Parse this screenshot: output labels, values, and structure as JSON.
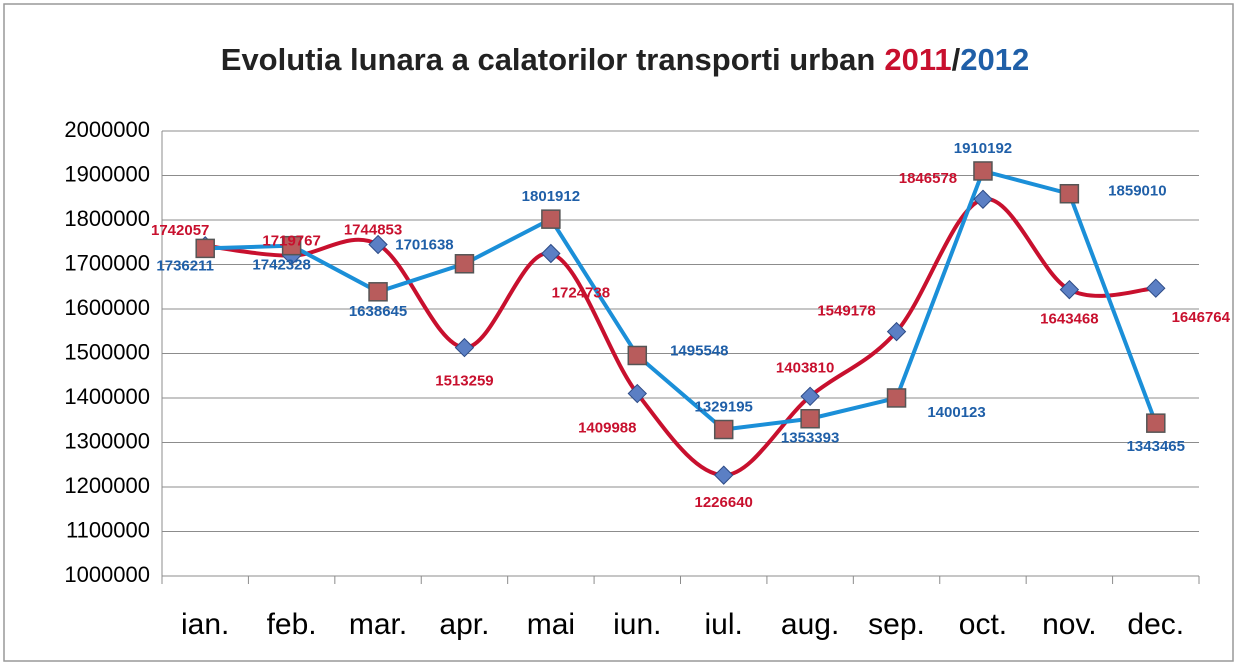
{
  "chart_data": {
    "type": "line",
    "title": "Evolutia lunara a calatorilor transporti urban",
    "title_separator": "/",
    "categories": [
      "ian.",
      "feb.",
      "mar.",
      "apr.",
      "mai",
      "iun.",
      "iul.",
      "aug.",
      "sep.",
      "oct.",
      "nov.",
      "dec."
    ],
    "series": [
      {
        "name": "2011",
        "color": "#c8102e",
        "label_color": "#c8102e",
        "marker": "diamond",
        "marker_color": "#5b7fc4",
        "smooth": true,
        "values": [
          1742057,
          1719767,
          1744853,
          1513259,
          1724738,
          1409988,
          1226640,
          1403810,
          1549178,
          1846578,
          1643468,
          1646764
        ]
      },
      {
        "name": "2012",
        "color": "#1b8fd8",
        "label_color": "#1f5fa8",
        "marker": "square",
        "marker_color": "#b85c5c",
        "smooth": false,
        "values": [
          1736211,
          1742328,
          1638645,
          1701638,
          1801912,
          1495548,
          1329195,
          1353393,
          1400123,
          1910192,
          1859010,
          1343465
        ]
      }
    ],
    "ylim": [
      1000000,
      2000000
    ],
    "yticks": [
      1000000,
      1100000,
      1200000,
      1300000,
      1400000,
      1500000,
      1600000,
      1700000,
      1800000,
      1900000,
      2000000
    ],
    "grid": true
  }
}
